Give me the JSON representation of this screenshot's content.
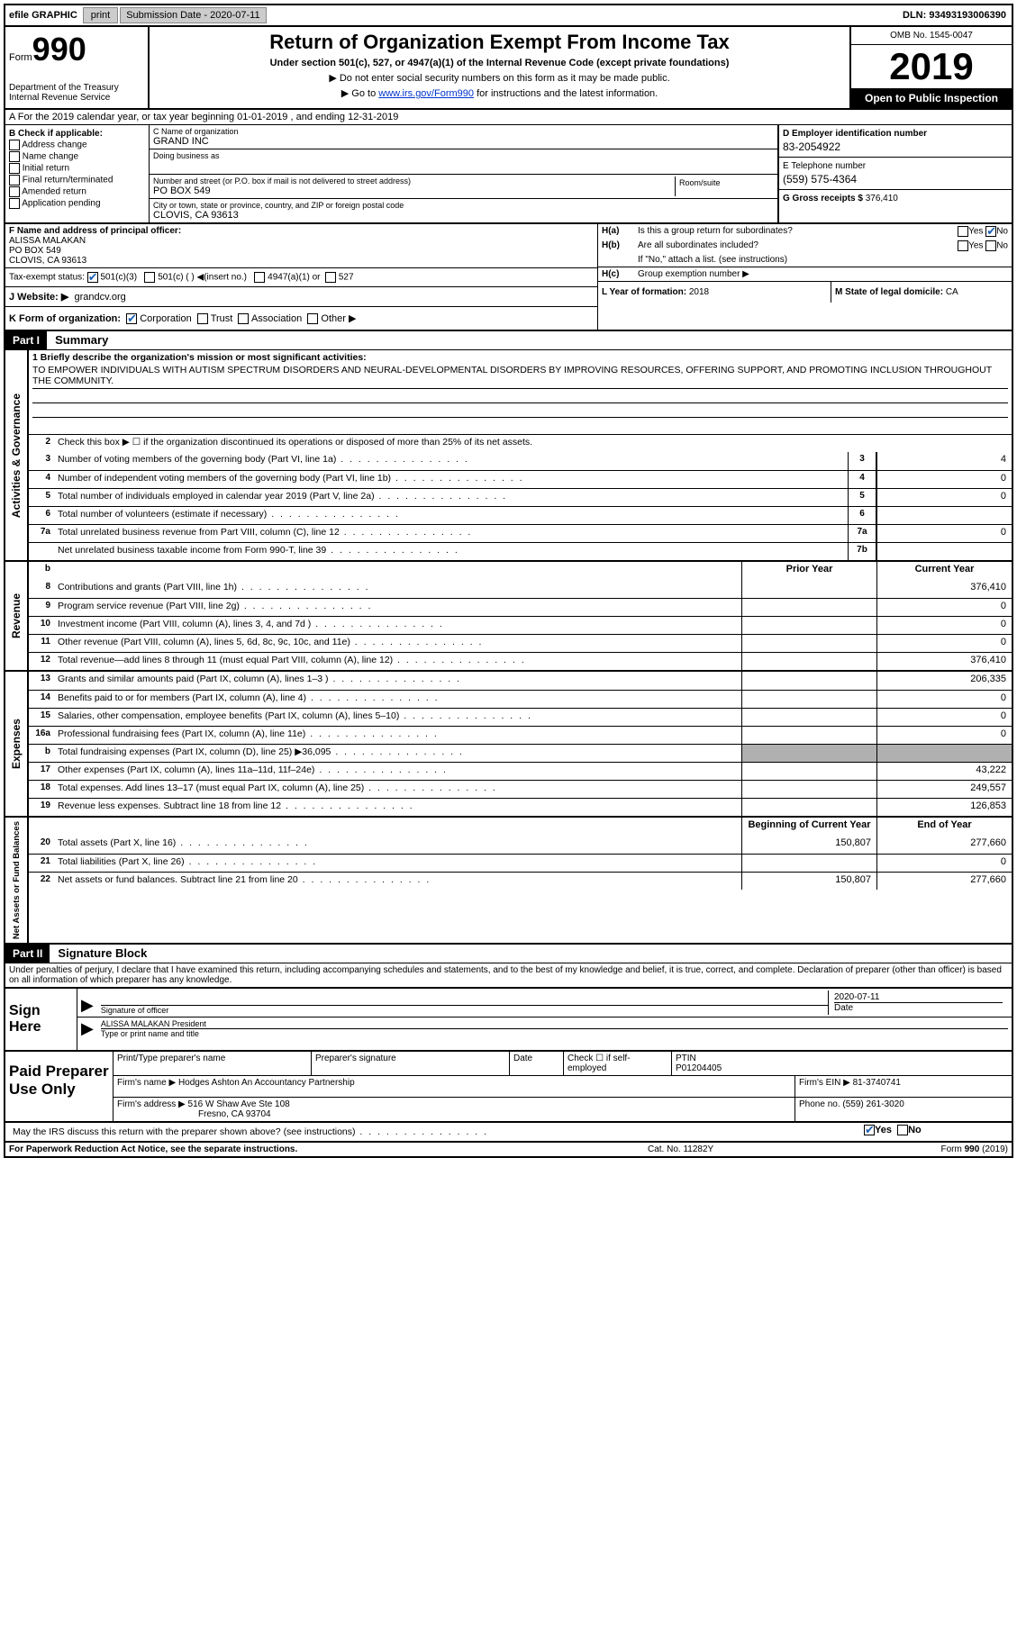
{
  "topbar": {
    "efile": "efile GRAPHIC",
    "print": "print",
    "submission_label": "Submission Date - 2020-07-11",
    "dln": "DLN: 93493193006390"
  },
  "header": {
    "form_label": "Form",
    "form_number": "990",
    "dept": "Department of the Treasury\nInternal Revenue Service",
    "title": "Return of Organization Exempt From Income Tax",
    "subtitle": "Under section 501(c), 527, or 4947(a)(1) of the Internal Revenue Code (except private foundations)",
    "instr1": "▶ Do not enter social security numbers on this form as it may be made public.",
    "instr2_pre": "▶ Go to ",
    "instr2_link": "www.irs.gov/Form990",
    "instr2_post": " for instructions and the latest information.",
    "omb": "OMB No. 1545-0047",
    "year": "2019",
    "open": "Open to Public Inspection"
  },
  "row_a": "A For the 2019 calendar year, or tax year beginning 01-01-2019   , and ending 12-31-2019",
  "section_b": {
    "label": "B Check if applicable:",
    "items": [
      "Address change",
      "Name change",
      "Initial return",
      "Final return/terminated",
      "Amended return",
      "Application pending"
    ]
  },
  "section_c": {
    "name_label": "C Name of organization",
    "name": "GRAND INC",
    "dba_label": "Doing business as",
    "dba": "",
    "addr_label": "Number and street (or P.O. box if mail is not delivered to street address)",
    "addr": "PO BOX 549",
    "room_label": "Room/suite",
    "city_label": "City or town, state or province, country, and ZIP or foreign postal code",
    "city": "CLOVIS, CA  93613"
  },
  "section_d": {
    "label": "D Employer identification number",
    "ein": "83-2054922",
    "phone_label": "E Telephone number",
    "phone": "(559) 575-4364",
    "gross_label": "G Gross receipts $",
    "gross": "376,410"
  },
  "section_f": {
    "label": "F  Name and address of principal officer:",
    "name": "ALISSA MALAKAN",
    "addr1": "PO BOX 549",
    "addr2": "CLOVIS, CA  93613"
  },
  "section_h": {
    "a_label": "H(a)",
    "a_text": "Is this a group return for subordinates?",
    "b_label": "H(b)",
    "b_text": "Are all subordinates included?",
    "b_note": "If \"No,\" attach a list. (see instructions)",
    "c_label": "H(c)",
    "c_text": "Group exemption number ▶"
  },
  "tax_status": {
    "label": "Tax-exempt status:",
    "opt1": "501(c)(3)",
    "opt2": "501(c) (  ) ◀(insert no.)",
    "opt3": "4947(a)(1) or",
    "opt4": "527"
  },
  "website": {
    "label": "J Website: ▶",
    "val": "grandcv.org"
  },
  "k_row": {
    "label": "K Form of organization:",
    "opts": [
      "Corporation",
      "Trust",
      "Association",
      "Other ▶"
    ]
  },
  "l_row": {
    "label": "L Year of formation:",
    "val": "2018"
  },
  "m_row": {
    "label": "M State of legal domicile:",
    "val": "CA"
  },
  "part1": {
    "header": "Part I",
    "title": "Summary",
    "line1_label": "1  Briefly describe the organization's mission or most significant activities:",
    "mission": "TO EMPOWER INDIVIDUALS WITH AUTISM SPECTRUM DISORDERS AND NEURAL-DEVELOPMENTAL DISORDERS BY IMPROVING RESOURCES, OFFERING SUPPORT, AND PROMOTING INCLUSION THROUGHOUT THE COMMUNITY.",
    "line2": "Check this box ▶ ☐  if the organization discontinued its operations or disposed of more than 25% of its net assets.",
    "sect_ag": "Activities & Governance",
    "sect_rev": "Revenue",
    "sect_exp": "Expenses",
    "sect_net": "Net Assets or Fund Balances",
    "col_prior": "Prior Year",
    "col_current": "Current Year",
    "col_begin": "Beginning of Current Year",
    "col_end": "End of Year",
    "lines_ag": [
      {
        "num": "3",
        "text": "Number of voting members of the governing body (Part VI, line 1a)",
        "box": "3",
        "val": "4"
      },
      {
        "num": "4",
        "text": "Number of independent voting members of the governing body (Part VI, line 1b)",
        "box": "4",
        "val": "0"
      },
      {
        "num": "5",
        "text": "Total number of individuals employed in calendar year 2019 (Part V, line 2a)",
        "box": "5",
        "val": "0"
      },
      {
        "num": "6",
        "text": "Total number of volunteers (estimate if necessary)",
        "box": "6",
        "val": ""
      },
      {
        "num": "7a",
        "text": "Total unrelated business revenue from Part VIII, column (C), line 12",
        "box": "7a",
        "val": "0"
      },
      {
        "num": "",
        "text": "Net unrelated business taxable income from Form 990-T, line 39",
        "box": "7b",
        "val": ""
      }
    ],
    "lines_rev": [
      {
        "num": "8",
        "text": "Contributions and grants (Part VIII, line 1h)",
        "prior": "",
        "cur": "376,410"
      },
      {
        "num": "9",
        "text": "Program service revenue (Part VIII, line 2g)",
        "prior": "",
        "cur": "0"
      },
      {
        "num": "10",
        "text": "Investment income (Part VIII, column (A), lines 3, 4, and 7d )",
        "prior": "",
        "cur": "0"
      },
      {
        "num": "11",
        "text": "Other revenue (Part VIII, column (A), lines 5, 6d, 8c, 9c, 10c, and 11e)",
        "prior": "",
        "cur": "0"
      },
      {
        "num": "12",
        "text": "Total revenue—add lines 8 through 11 (must equal Part VIII, column (A), line 12)",
        "prior": "",
        "cur": "376,410"
      }
    ],
    "lines_exp": [
      {
        "num": "13",
        "text": "Grants and similar amounts paid (Part IX, column (A), lines 1–3 )",
        "prior": "",
        "cur": "206,335"
      },
      {
        "num": "14",
        "text": "Benefits paid to or for members (Part IX, column (A), line 4)",
        "prior": "",
        "cur": "0"
      },
      {
        "num": "15",
        "text": "Salaries, other compensation, employee benefits (Part IX, column (A), lines 5–10)",
        "prior": "",
        "cur": "0"
      },
      {
        "num": "16a",
        "text": "Professional fundraising fees (Part IX, column (A), line 11e)",
        "prior": "",
        "cur": "0"
      },
      {
        "num": "b",
        "text": "Total fundraising expenses (Part IX, column (D), line 25) ▶36,095",
        "prior": "shaded",
        "cur": "shaded"
      },
      {
        "num": "17",
        "text": "Other expenses (Part IX, column (A), lines 11a–11d, 11f–24e)",
        "prior": "",
        "cur": "43,222"
      },
      {
        "num": "18",
        "text": "Total expenses. Add lines 13–17 (must equal Part IX, column (A), line 25)",
        "prior": "",
        "cur": "249,557"
      },
      {
        "num": "19",
        "text": "Revenue less expenses. Subtract line 18 from line 12",
        "prior": "",
        "cur": "126,853"
      }
    ],
    "lines_net": [
      {
        "num": "20",
        "text": "Total assets (Part X, line 16)",
        "prior": "150,807",
        "cur": "277,660"
      },
      {
        "num": "21",
        "text": "Total liabilities (Part X, line 26)",
        "prior": "",
        "cur": "0"
      },
      {
        "num": "22",
        "text": "Net assets or fund balances. Subtract line 21 from line 20",
        "prior": "150,807",
        "cur": "277,660"
      }
    ]
  },
  "part2": {
    "header": "Part II",
    "title": "Signature Block",
    "declare": "Under penalties of perjury, I declare that I have examined this return, including accompanying schedules and statements, and to the best of my knowledge and belief, it is true, correct, and complete. Declaration of preparer (other than officer) is based on all information of which preparer has any knowledge.",
    "sign_here": "Sign Here",
    "sig_officer_label": "Signature of officer",
    "sig_date": "2020-07-11",
    "date_label": "Date",
    "sig_name": "ALISSA MALAKAN  President",
    "sig_name_label": "Type or print name and title",
    "paid_prep": "Paid Preparer Use Only",
    "prep_name_label": "Print/Type preparer's name",
    "prep_sig_label": "Preparer's signature",
    "prep_date_label": "Date",
    "prep_check": "Check ☐ if self-employed",
    "ptin_label": "PTIN",
    "ptin": "P01204405",
    "firm_name_label": "Firm's name    ▶",
    "firm_name": "Hodges Ashton An Accountancy Partnership",
    "firm_ein_label": "Firm's EIN ▶",
    "firm_ein": "81-3740741",
    "firm_addr_label": "Firm's address ▶",
    "firm_addr1": "516 W Shaw Ave Ste 108",
    "firm_addr2": "Fresno, CA  93704",
    "firm_phone_label": "Phone no.",
    "firm_phone": "(559) 261-3020",
    "discuss": "May the IRS discuss this return with the preparer shown above? (see instructions)",
    "yes": "Yes",
    "no": "No"
  },
  "footer": {
    "left": "For Paperwork Reduction Act Notice, see the separate instructions.",
    "mid": "Cat. No. 11282Y",
    "right": "Form 990 (2019)"
  }
}
